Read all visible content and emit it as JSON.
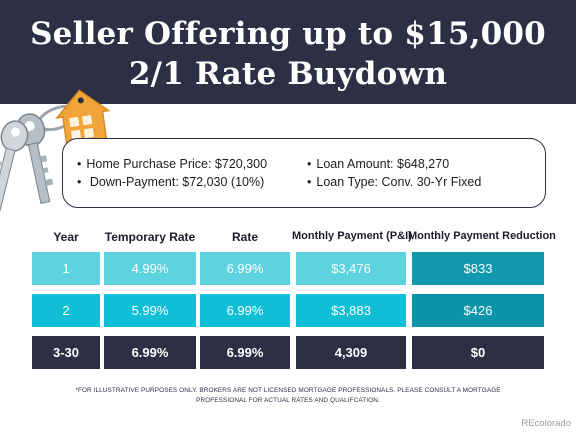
{
  "header": {
    "title_line1": "Seller Offering up to $15,000",
    "title_line2": "2/1 Rate Buydown"
  },
  "details": {
    "bullet": "•",
    "home_purchase_price": "Home Purchase Price: $720,300",
    "down_payment": "Down-Payment: $72,030 (10%)",
    "loan_amount": "Loan Amount: $648,270",
    "loan_type": "Loan Type: Conv. 30-Yr Fixed"
  },
  "table": {
    "headers": [
      "Year",
      "Temporary Rate",
      "Rate",
      "Monthly Payment (P&I)",
      "Monthly Payment Reduction"
    ],
    "rows": [
      [
        "1",
        "4.99%",
        "6.99%",
        "$3,476",
        "$833"
      ],
      [
        "2",
        "5.99%",
        "6.99%",
        "$3,883",
        "$426"
      ],
      [
        "3-30",
        "6.99%",
        "6.99%",
        "4,309",
        "$0"
      ]
    ]
  },
  "colors": {
    "banner": "#2d2f45",
    "row1_light": "#5dd3e0",
    "row1_dark": "#1198ac",
    "row2_light": "#10bfd6",
    "row2_dark": "#0c94a8",
    "row3": "#2d2f45",
    "tag": "#f0a43a"
  },
  "footnote": "*FOR ILLUSTRATIVE PURPOSES ONLY. BROKERS ARE NOT LICENSED MORTGAGE PROFESSIONALS. PLEASE CONSULT A MORTGAGE PROFESSIONAL FOR ACTUAL RATES AND QUALIFCATION.",
  "watermark": "REcolorado",
  "icons": {
    "keys": "house-keychain-icon"
  }
}
